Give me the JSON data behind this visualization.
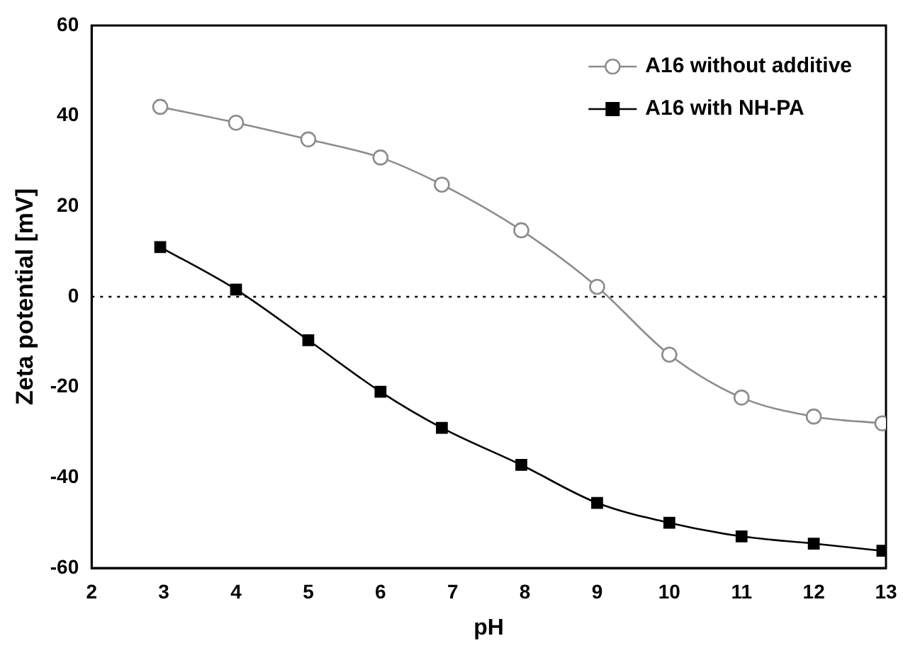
{
  "chart_data": {
    "type": "line",
    "xlabel": "pH",
    "ylabel": "Zeta potential [mV]",
    "xlim": [
      2,
      13
    ],
    "xticks": [
      2,
      3,
      4,
      5,
      6,
      7,
      8,
      9,
      10,
      11,
      12,
      13
    ],
    "ylim": [
      -60,
      60
    ],
    "yticks": [
      -60,
      -40,
      -20,
      0,
      20,
      40,
      60
    ],
    "grid": false,
    "legend": "top right",
    "ref_lines": [
      {
        "axis": "y",
        "value": 0,
        "line_style": "dotted",
        "color": "#000000"
      }
    ],
    "series": [
      {
        "name": "A16 without additive",
        "color": "#8c8c8c",
        "marker": "circle",
        "x": [
          2.95,
          4,
          5,
          6,
          6.85,
          7.95,
          9,
          10,
          11,
          12,
          12.95
        ],
        "values": [
          42,
          38.5,
          34.8,
          30.8,
          24.8,
          14.7,
          2.2,
          -12.8,
          -22.3,
          -26.5,
          -28
        ]
      },
      {
        "name": "A16 with NH-PA",
        "color": "#000000",
        "marker": "square",
        "x": [
          2.95,
          4,
          5,
          6,
          6.85,
          7.95,
          9,
          10,
          11,
          12,
          12.95
        ],
        "values": [
          11,
          1.6,
          -9.6,
          -21,
          -29,
          -37.2,
          -45.6,
          -50,
          -53,
          -54.6,
          -56.2
        ]
      }
    ]
  }
}
